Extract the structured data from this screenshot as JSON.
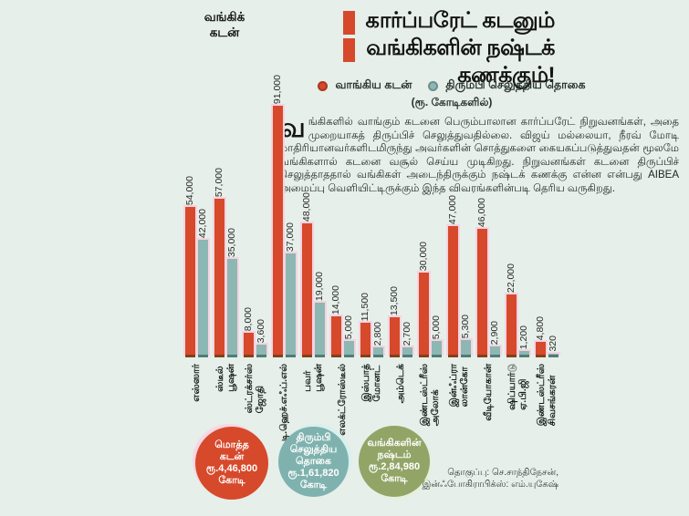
{
  "page": {
    "background": "#e6efe9"
  },
  "header": {
    "title_line1": "கார்ப்பரேட் கடனும்",
    "title_line2": "வங்கிகளின் நஷ்டக் கணக்கும்!",
    "accent_color": "#d6492b"
  },
  "legend": {
    "items": [
      {
        "label": "வாங்கிய கடன்",
        "color": "#d6492b"
      },
      {
        "label": "திரும்பி செலுத்திய தொகை",
        "color": "#8db7b2"
      }
    ],
    "unit": "(ரூ. கோடிகளில்)"
  },
  "intro": {
    "dropcap": "வ",
    "text": "ங்கிகளில் வாங்கும் கடனை பெரும்பாலான கார்ப்பரேட் நிறுவனங்கள், அதை முறையாகத் திருப்பிச் செலுத்துவதில்லை. விஜய் மல்லையா, நீரவ் மோடி மாதிரியானவர்களிடமிருந்து அவர்களின் சொத்துகளை கையகப்படுத்துவதன் மூலமே வங்கிகளால் கடனை வசூல் செய்ய முடிகிறது. நிறுவனங்கள் கடனை திருப்பிச் செலுத்தாததால் வங்கிகள் அடைந்திருக்கும் நஷ்டக் கணக்கு என்ன என்பது AIBEA அமைப்பு வெளியிட்டிருக்கும் இந்த விவரங்களின்படி தெரிய வருகிறது."
  },
  "chart_data": {
    "type": "bar",
    "title": "வங்கிக்\nகடன்",
    "unit": "ரூ. கோடிகளில்",
    "grid": false,
    "legend_position": "top",
    "ylim": [
      0,
      91000
    ],
    "categories": [
      "எஸ்ஸார்",
      "பூஷன்\nஸ்டீல்",
      "ஜோதி\nஸ்ட்ரக்சர்ஸ்",
      "டி.ஹெச்.எஃப்.எல்",
      "பூஷன்\nபவர்",
      "எலக்ட்ரோஸ்டீல்",
      "மோனட்\nஇஸ்பாத்",
      "அம்டெக்",
      "அலோக்\nஇண்டஸ்ட்ரீஸ்",
      "லான்கோ\nஇன்ஃப்ரா",
      "வீடியோகான்",
      "ஏ.பி.ஜி ஷிப்யார்டு",
      "சிவசங்கரன்\nஇண்டஸ்ட்ரீஸ்"
    ],
    "series": [
      {
        "name": "வாங்கிய கடன்",
        "color": "#d6492b",
        "values": [
          54000,
          57000,
          8000,
          91000,
          48000,
          14000,
          11500,
          13500,
          30000,
          47000,
          46000,
          22000,
          4800
        ]
      },
      {
        "name": "திரும்பி செலுத்திய தொகை",
        "color": "#8db7b2",
        "values": [
          42000,
          35000,
          3600,
          37000,
          19000,
          5000,
          2800,
          2700,
          5000,
          5300,
          2900,
          1200,
          320
        ]
      }
    ]
  },
  "summary_circles": [
    {
      "text": "மொத்த\nகடன்\nரூ.4,46,800\nகோடி",
      "color": "#d6492b"
    },
    {
      "text": "திரும்பி\nசெலுத்திய\nதொகை\nரூ.1,61,820\nகோடி",
      "color": "#7fb2ae"
    },
    {
      "text": "வங்கிகளின்\nநஷ்டம்\nரூ.2,84,980\nகோடி",
      "color": "#92a567"
    }
  ],
  "credits": {
    "line1": "தொகுப்பு: செ.சாந்திநேசன்,",
    "line2": "இன்ஃபோகிராபிக்ஸ்: எம்.யுகேஷ்"
  }
}
